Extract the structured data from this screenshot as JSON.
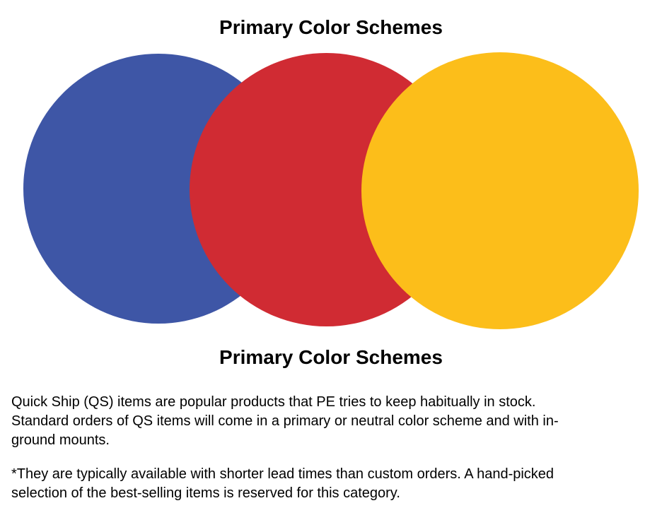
{
  "titles": {
    "top": "Primary Color Schemes",
    "bottom": "Primary Color Schemes"
  },
  "diagram": {
    "description_names": [
      "blue-circle",
      "red-circle",
      "yellow-circle"
    ],
    "circles": [
      {
        "name": "blue",
        "color": "#3E56A6"
      },
      {
        "name": "red",
        "color": "#D02B33"
      },
      {
        "name": "yellow",
        "color": "#FCBE1A"
      }
    ]
  },
  "paragraphs": [
    {
      "lines": [
        "Quick Ship (QS) items are popular products that PE tries to keep habitually in stock.",
        "Standard orders of QS items will come in a primary or neutral color scheme and with in-",
        "ground mounts."
      ]
    },
    {
      "lines": [
        "*They are typically available with shorter lead times than custom orders. A hand-picked",
        "selection of the best-selling items is reserved for this category."
      ]
    }
  ]
}
